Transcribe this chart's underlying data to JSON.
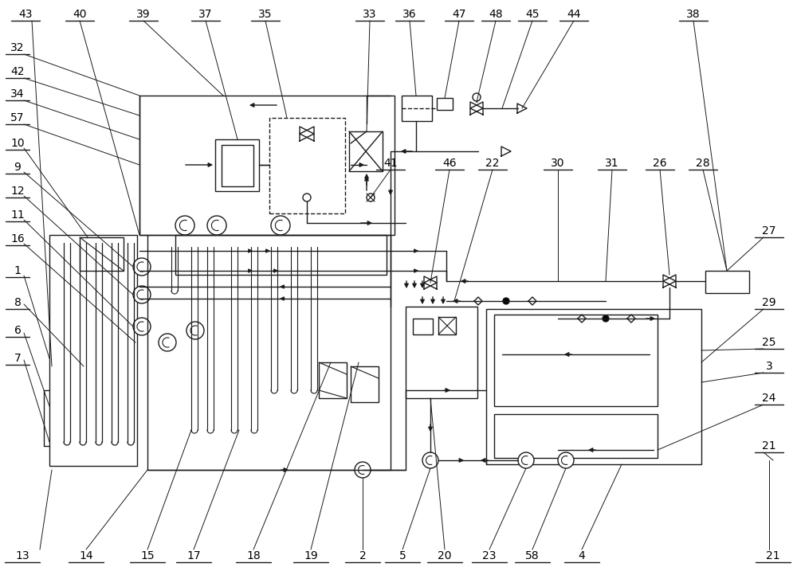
{
  "bg_color": "#ffffff",
  "line_color": "#1a1a1a",
  "fig_width": 10.0,
  "fig_height": 7.17,
  "lw": 1.0
}
